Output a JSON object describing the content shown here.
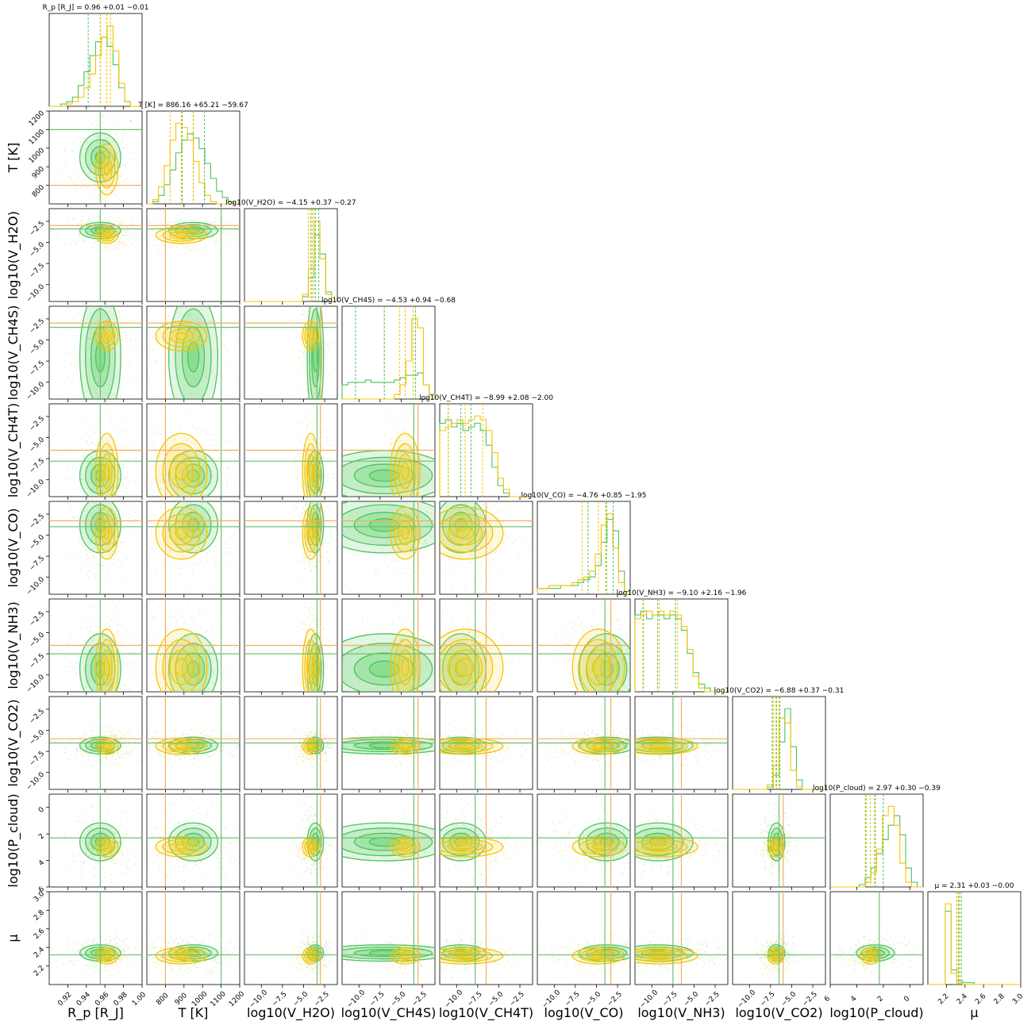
{
  "chart_data": {
    "type": "corner",
    "parameters": [
      {
        "id": "rp",
        "label": "R_p [R_J]",
        "range": [
          0.9,
          1.0
        ],
        "ticks": [
          0.92,
          0.94,
          0.96,
          0.98,
          1.0
        ],
        "tick_labels": [
          "0.92",
          "0.94",
          "0.96",
          "0.98",
          "1.00"
        ],
        "title": "R_p [R_J] = 0.96 +0.01 −0.01",
        "truth": 0.955,
        "median": 0.96,
        "hist_green": [
          0,
          0,
          1,
          2,
          4,
          9,
          15,
          22,
          28,
          30,
          26,
          18,
          8,
          2,
          0,
          0
        ],
        "hist_yellow": [
          0,
          0,
          0,
          1,
          2,
          4,
          8,
          14,
          22,
          30,
          35,
          24,
          10,
          2,
          0,
          0
        ],
        "q_green": [
          0.942,
          0.955,
          0.962
        ],
        "q_yellow": [
          0.955,
          0.962,
          0.966
        ]
      },
      {
        "id": "T",
        "label": "T [K]",
        "range": [
          700,
          1200
        ],
        "ticks": [
          800,
          900,
          1000,
          1100,
          1200
        ],
        "tick_labels": [
          "800",
          "900",
          "1000",
          "1100",
          "1200"
        ],
        "title": "T [K] = 886.16 +65.21 −59.67",
        "truth": 1100,
        "truth_yellow": 800,
        "median": 886,
        "hist_green": [
          0,
          1,
          4,
          9,
          16,
          24,
          30,
          33,
          31,
          26,
          19,
          12,
          6,
          3,
          1,
          0
        ],
        "hist_yellow": [
          0,
          2,
          8,
          18,
          30,
          38,
          36,
          30,
          20,
          10,
          4,
          1,
          0,
          0,
          0,
          0
        ],
        "q_green": [
          890,
          950,
          1010
        ],
        "q_yellow": [
          826,
          886,
          951
        ]
      },
      {
        "id": "h2o",
        "label": "log10(V_H2O)",
        "range": [
          -12,
          -1
        ],
        "ticks": [
          -10.0,
          -7.5,
          -5.0,
          -2.5
        ],
        "tick_labels": [
          "−10.0",
          "−7.5",
          "−5.0",
          "−2.5"
        ],
        "title": "log10(V_H2O) = −4.15 +0.37 −0.27",
        "truth": -3.4,
        "truth_yellow": -3.0,
        "median": -4.15,
        "hist_green": [
          0,
          0,
          0,
          0,
          0,
          0,
          0,
          0,
          0,
          0,
          2,
          10,
          28,
          20,
          4,
          0
        ],
        "hist_yellow": [
          0,
          0,
          0,
          0,
          0,
          0,
          0,
          0,
          0,
          0,
          3,
          14,
          34,
          18,
          3,
          0
        ],
        "q_green": [
          -4.0,
          -3.6,
          -3.2
        ],
        "q_yellow": [
          -4.42,
          -4.15,
          -3.78
        ]
      },
      {
        "id": "ch4s",
        "label": "log10(V_CH4S)",
        "range": [
          -12,
          -1
        ],
        "ticks": [
          -10.0,
          -7.5,
          -5.0,
          -2.5
        ],
        "tick_labels": [
          "−10.0",
          "−7.5",
          "−5.0",
          "−2.5"
        ],
        "title": "log10(V_CH4S) = −4.53 +0.94 −0.68",
        "truth": -3.5,
        "truth_yellow": -3.0,
        "median": -4.53,
        "hist_green": [
          6,
          7,
          7,
          7,
          8,
          7,
          7,
          7,
          7,
          8,
          9,
          10,
          10,
          11,
          6,
          2
        ],
        "hist_yellow": [
          0,
          0,
          0,
          0,
          0,
          0,
          0,
          0,
          0,
          2,
          6,
          16,
          34,
          30,
          6,
          0
        ],
        "q_green": [
          -10.4,
          -7.0,
          -3.3
        ],
        "q_yellow": [
          -5.2,
          -4.53,
          -3.6
        ]
      },
      {
        "id": "ch4t",
        "label": "log10(V_CH4T)",
        "range": [
          -12,
          -1
        ],
        "ticks": [
          -10.0,
          -7.5,
          -5.0,
          -2.5
        ],
        "tick_labels": [
          "−10.0",
          "−7.5",
          "−5.0",
          "−2.5"
        ],
        "title": "log10(V_CH4T) = −8.99 +2.08 −2.00",
        "truth": -7.8,
        "truth_yellow": -6.5,
        "median": -8.99,
        "hist_green": [
          20,
          21,
          19,
          20,
          18,
          19,
          20,
          18,
          14,
          8,
          3,
          1,
          0,
          0,
          0,
          0
        ],
        "hist_yellow": [
          18,
          19,
          20,
          21,
          20,
          21,
          22,
          21,
          18,
          12,
          5,
          2,
          0,
          0,
          0,
          0
        ],
        "q_green": [
          -11.0,
          -9.5,
          -8.3
        ],
        "q_yellow": [
          -10.99,
          -8.99,
          -6.91
        ]
      },
      {
        "id": "co",
        "label": "log10(V_CO)",
        "range": [
          -12,
          -1
        ],
        "ticks": [
          -10.0,
          -7.5,
          -5.0,
          -2.5
        ],
        "tick_labels": [
          "−10.0",
          "−7.5",
          "−5.0",
          "−2.5"
        ],
        "title": "log10(V_CO) = −4.76 +0.85 −1.95",
        "truth": -4.0,
        "truth_yellow": -3.3,
        "median": -4.76,
        "hist_green": [
          2,
          2,
          2,
          2,
          3,
          3,
          3,
          4,
          5,
          6,
          10,
          18,
          26,
          22,
          8,
          1
        ],
        "hist_yellow": [
          2,
          2,
          3,
          3,
          3,
          3,
          4,
          5,
          6,
          8,
          14,
          24,
          28,
          16,
          4,
          0
        ],
        "q_green": [
          -6.0,
          -3.8,
          -3.0
        ],
        "q_yellow": [
          -6.71,
          -4.76,
          -3.91
        ]
      },
      {
        "id": "nh3",
        "label": "log10(V_NH3)",
        "range": [
          -12,
          -1
        ],
        "ticks": [
          -10.0,
          -7.5,
          -5.0,
          -2.5
        ],
        "tick_labels": [
          "−10.0",
          "−7.5",
          "−5.0",
          "−2.5"
        ],
        "title": "log10(V_NH3) = −9.10 +2.16 −1.96",
        "truth": -7.5,
        "truth_yellow": -6.5,
        "median": -9.1,
        "hist_green": [
          20,
          21,
          19,
          20,
          20,
          19,
          20,
          19,
          16,
          10,
          5,
          2,
          1,
          0,
          0,
          0
        ],
        "hist_yellow": [
          19,
          20,
          21,
          20,
          21,
          20,
          21,
          20,
          17,
          11,
          4,
          1,
          0,
          0,
          0,
          0
        ],
        "q_green": [
          -11.0,
          -9.3,
          -7.2
        ],
        "q_yellow": [
          -11.06,
          -9.1,
          -6.94
        ]
      },
      {
        "id": "co2",
        "label": "log10(V_CO2)",
        "range": [
          -12,
          -1
        ],
        "ticks": [
          -10.0,
          -7.5,
          -5.0,
          -2.5
        ],
        "tick_labels": [
          "−10.0",
          "−7.5",
          "−5.0",
          "−2.5"
        ],
        "title": "log10(V_CO2) = −6.88 +0.37 −0.31",
        "truth": -6.5,
        "truth_yellow": -6.0,
        "median": -6.88,
        "hist_green": [
          0,
          0,
          0,
          0,
          0,
          0,
          1,
          6,
          20,
          34,
          18,
          4,
          0,
          0,
          0,
          0
        ],
        "hist_yellow": [
          0,
          0,
          0,
          0,
          0,
          0,
          2,
          10,
          30,
          28,
          8,
          1,
          0,
          0,
          0,
          0
        ],
        "q_green": [
          -7.3,
          -6.8,
          -6.4
        ],
        "q_yellow": [
          -7.19,
          -6.88,
          -6.51
        ]
      },
      {
        "id": "pcloud",
        "label": "log10(P_cloud)",
        "range": [
          6,
          -1
        ],
        "ticks": [
          6,
          4,
          2,
          0
        ],
        "tick_labels": [
          "6",
          "4",
          "2",
          "0"
        ],
        "title": "log10(P_cloud) = 2.97 +0.30 −0.39",
        "truth": 2.3,
        "median": 2.97,
        "hist_green": [
          0,
          0,
          0,
          0,
          0,
          1,
          4,
          8,
          14,
          20,
          26,
          30,
          22,
          8,
          2,
          0
        ],
        "hist_yellow": [
          0,
          0,
          0,
          0,
          0,
          0,
          2,
          6,
          16,
          30,
          34,
          26,
          10,
          2,
          0,
          0
        ],
        "q_green": [
          3.3,
          2.6,
          2.0
        ],
        "q_yellow": [
          3.36,
          2.97,
          2.67
        ]
      },
      {
        "id": "mu",
        "label": "μ",
        "range": [
          2.0,
          3.0
        ],
        "ticks": [
          2.2,
          2.4,
          2.6,
          2.8,
          3.0
        ],
        "tick_labels": [
          "2.2",
          "2.4",
          "2.6",
          "2.8",
          "3.0"
        ],
        "title": "μ = 2.31 +0.03 −0.00",
        "truth": 2.32,
        "median": 2.31,
        "hist_green": [
          0,
          0,
          0,
          40,
          8,
          2,
          1,
          1,
          0,
          0,
          0,
          0,
          0,
          0,
          0,
          0
        ],
        "hist_yellow": [
          0,
          0,
          0,
          44,
          6,
          1,
          0,
          0,
          0,
          0,
          0,
          0,
          0,
          0,
          0,
          0
        ],
        "q_green": [
          2.33,
          2.34,
          2.36
        ],
        "q_yellow": [
          2.31,
          2.31,
          2.34
        ]
      }
    ],
    "colors": {
      "green": "#4cc45a",
      "green_fill": "#5fcf6a",
      "yellow": "#f5c400",
      "yellow_fill": "#f9d84a",
      "truth_green": "#6fbf73",
      "truth_yellow": "#f0b060"
    }
  }
}
